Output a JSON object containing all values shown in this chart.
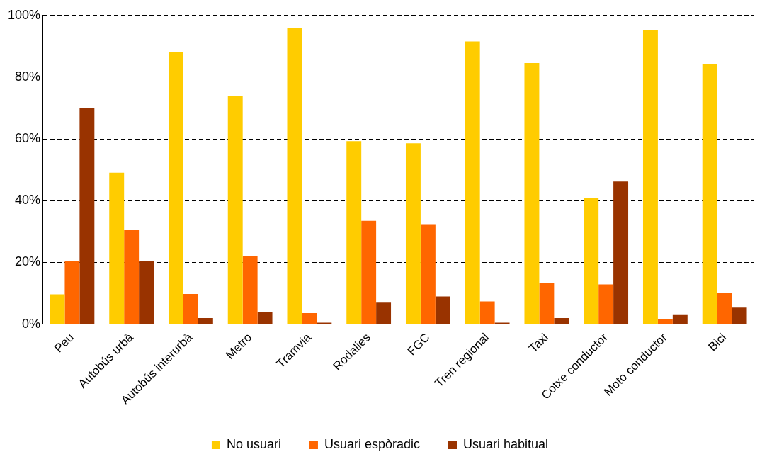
{
  "chart_data": {
    "type": "bar",
    "categories": [
      "Peu",
      "Autobús urbà",
      "Autobús interurbà",
      "Metro",
      "Tramvia",
      "Rodalies",
      "FGC",
      "Tren regional",
      "Taxi",
      "Cotxe conductor",
      "Moto conductor",
      "Bici"
    ],
    "series": [
      {
        "name": "No usuari",
        "color": "#ffcc00",
        "values": [
          9.7,
          49.1,
          88.2,
          73.8,
          95.9,
          59.3,
          58.6,
          91.6,
          84.6,
          41.0,
          95.2,
          84.2
        ]
      },
      {
        "name": "Usuari espòradic",
        "color": "#ff6600",
        "values": [
          20.4,
          30.5,
          9.8,
          22.2,
          3.6,
          33.5,
          32.4,
          7.4,
          13.3,
          12.9,
          1.6,
          10.2
        ]
      },
      {
        "name": "Usuari habitual",
        "color": "#993300",
        "values": [
          69.9,
          20.5,
          2.0,
          3.8,
          0.5,
          7.0,
          9.0,
          0.5,
          2.0,
          46.2,
          3.2,
          5.4
        ]
      }
    ],
    "ylim": [
      0,
      100
    ],
    "yticks": [
      {
        "value": 0,
        "label": "0%"
      },
      {
        "value": 20,
        "label": "20%"
      },
      {
        "value": 40,
        "label": "40%"
      },
      {
        "value": 60,
        "label": "60%"
      },
      {
        "value": 80,
        "label": "80%"
      },
      {
        "value": 100,
        "label": "100%"
      }
    ],
    "grid": "y",
    "legend": "bottom"
  }
}
